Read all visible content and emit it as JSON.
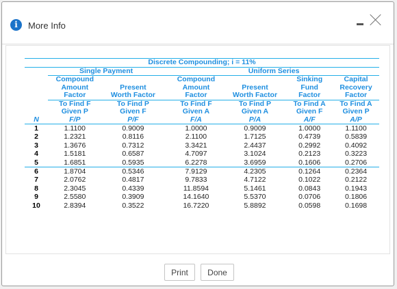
{
  "dialog": {
    "title": "More Info",
    "print_label": "Print",
    "done_label": "Done"
  },
  "table": {
    "title": "Discrete Compounding; i = 11%",
    "single_payment": "Single Payment",
    "uniform_series": "Uniform Series",
    "factors": [
      {
        "name": [
          "Compound",
          "Amount",
          "Factor"
        ],
        "find": [
          "To Find F",
          "Given P"
        ],
        "symbol": "F/P"
      },
      {
        "name": [
          "",
          "Present",
          "Worth Factor"
        ],
        "find": [
          "To Find P",
          "Given F"
        ],
        "symbol": "P/F"
      },
      {
        "name": [
          "Compound",
          "Amount",
          "Factor"
        ],
        "find": [
          "To Find F",
          "Given A"
        ],
        "symbol": "F/A"
      },
      {
        "name": [
          "",
          "Present",
          "Worth Factor"
        ],
        "find": [
          "To Find P",
          "Given A"
        ],
        "symbol": "P/A"
      },
      {
        "name": [
          "Sinking",
          "Fund",
          "Factor"
        ],
        "find": [
          "To Find A",
          "Given F"
        ],
        "symbol": "A/F"
      },
      {
        "name": [
          "Capital",
          "Recovery",
          "Factor"
        ],
        "find": [
          "To Find A",
          "Given P"
        ],
        "symbol": "A/P"
      }
    ],
    "n_label": "N",
    "rows": [
      [
        "1",
        "1.1100",
        "0.9009",
        "1.0000",
        "0.9009",
        "1.0000",
        "1.1100"
      ],
      [
        "2",
        "1.2321",
        "0.8116",
        "2.1100",
        "1.7125",
        "0.4739",
        "0.5839"
      ],
      [
        "3",
        "1.3676",
        "0.7312",
        "3.3421",
        "2.4437",
        "0.2992",
        "0.4092"
      ],
      [
        "4",
        "1.5181",
        "0.6587",
        "4.7097",
        "3.1024",
        "0.2123",
        "0.3223"
      ],
      [
        "5",
        "1.6851",
        "0.5935",
        "6.2278",
        "3.6959",
        "0.1606",
        "0.2706"
      ],
      [
        "6",
        "1.8704",
        "0.5346",
        "7.9129",
        "4.2305",
        "0.1264",
        "0.2364"
      ],
      [
        "7",
        "2.0762",
        "0.4817",
        "9.7833",
        "4.7122",
        "0.1022",
        "0.2122"
      ],
      [
        "8",
        "2.3045",
        "0.4339",
        "11.8594",
        "5.1461",
        "0.0843",
        "0.1943"
      ],
      [
        "9",
        "2.5580",
        "0.3909",
        "14.1640",
        "5.5370",
        "0.0706",
        "0.1806"
      ],
      [
        "10",
        "2.8394",
        "0.3522",
        "16.7220",
        "5.8892",
        "0.0598",
        "0.1698"
      ]
    ]
  }
}
